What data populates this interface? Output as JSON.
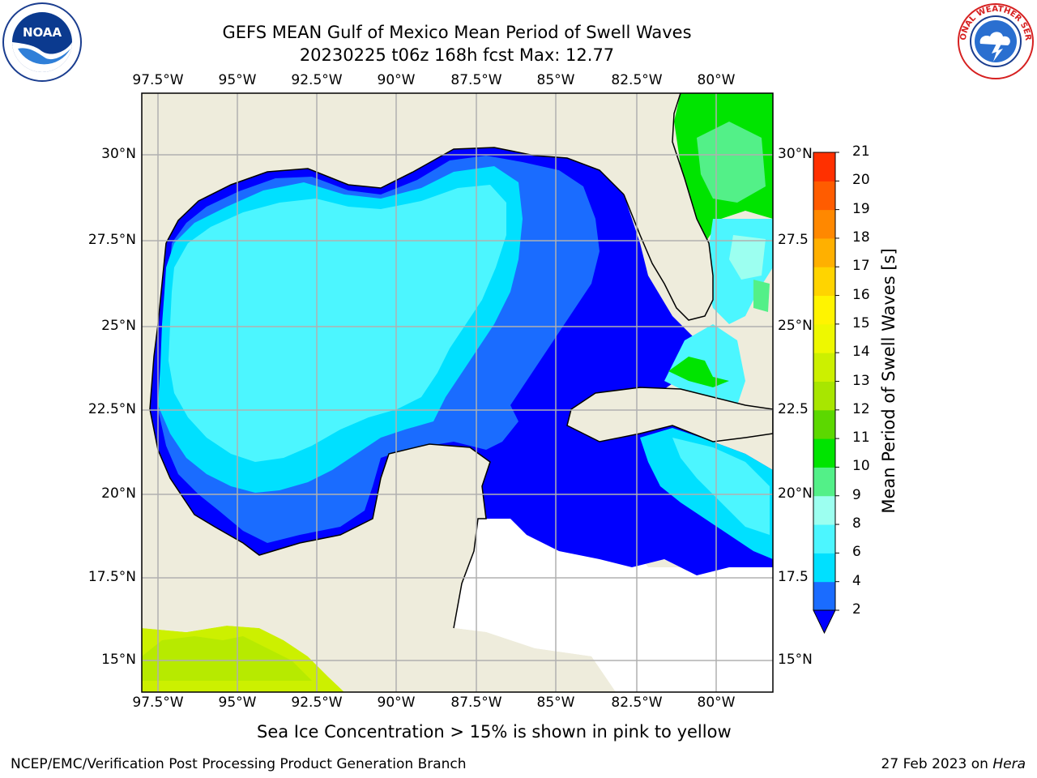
{
  "title": {
    "line1": "GEFS MEAN Gulf of Mexico Mean Period of Swell Waves",
    "line2": "20230225 t06z 168h fcst   Max: 12.77"
  },
  "map": {
    "lon_labels": [
      "97.5°W",
      "95°W",
      "92.5°W",
      "90°W",
      "87.5°W",
      "85°W",
      "82.5°W",
      "80°W"
    ],
    "lat_labels_left": [
      "30°N",
      "27.5°N",
      "25°N",
      "22.5°N",
      "20°N",
      "17.5°N",
      "15°N"
    ],
    "lat_labels_right": [
      "30°N",
      "27.5",
      "25°N",
      "22.5",
      "20°N",
      "17.5",
      "15°N"
    ],
    "land_color": "#eeecdc",
    "grid_color": "#b0b0b0"
  },
  "colorbar": {
    "label": "Mean Period of Swell Waves [s]",
    "ticks": [
      "2",
      "4",
      "6",
      "8",
      "9",
      "10",
      "11",
      "12",
      "13",
      "14",
      "15",
      "16",
      "17",
      "18",
      "19",
      "20",
      "21"
    ],
    "colors": [
      "#1a6cff",
      "#00e0ff",
      "#4cf6ff",
      "#9cfff0",
      "#53f088",
      "#00e400",
      "#5cd800",
      "#a8e600",
      "#ccf000",
      "#eef800",
      "#fff400",
      "#ffd400",
      "#ffb000",
      "#ff8800",
      "#ff5c00",
      "#ff3000",
      "#ff0000"
    ],
    "extend_color": "#0000ff"
  },
  "note": "Sea Ice Concentration > 15% is shown in pink to yellow",
  "footer": {
    "left": "NCEP/EMC/Verification Post Processing Product Generation Branch",
    "date": "27 Feb 2023 on ",
    "host": "Hera"
  },
  "logos": {
    "left": "NOAA",
    "right": "NATIONAL WEATHER SERVICE"
  }
}
